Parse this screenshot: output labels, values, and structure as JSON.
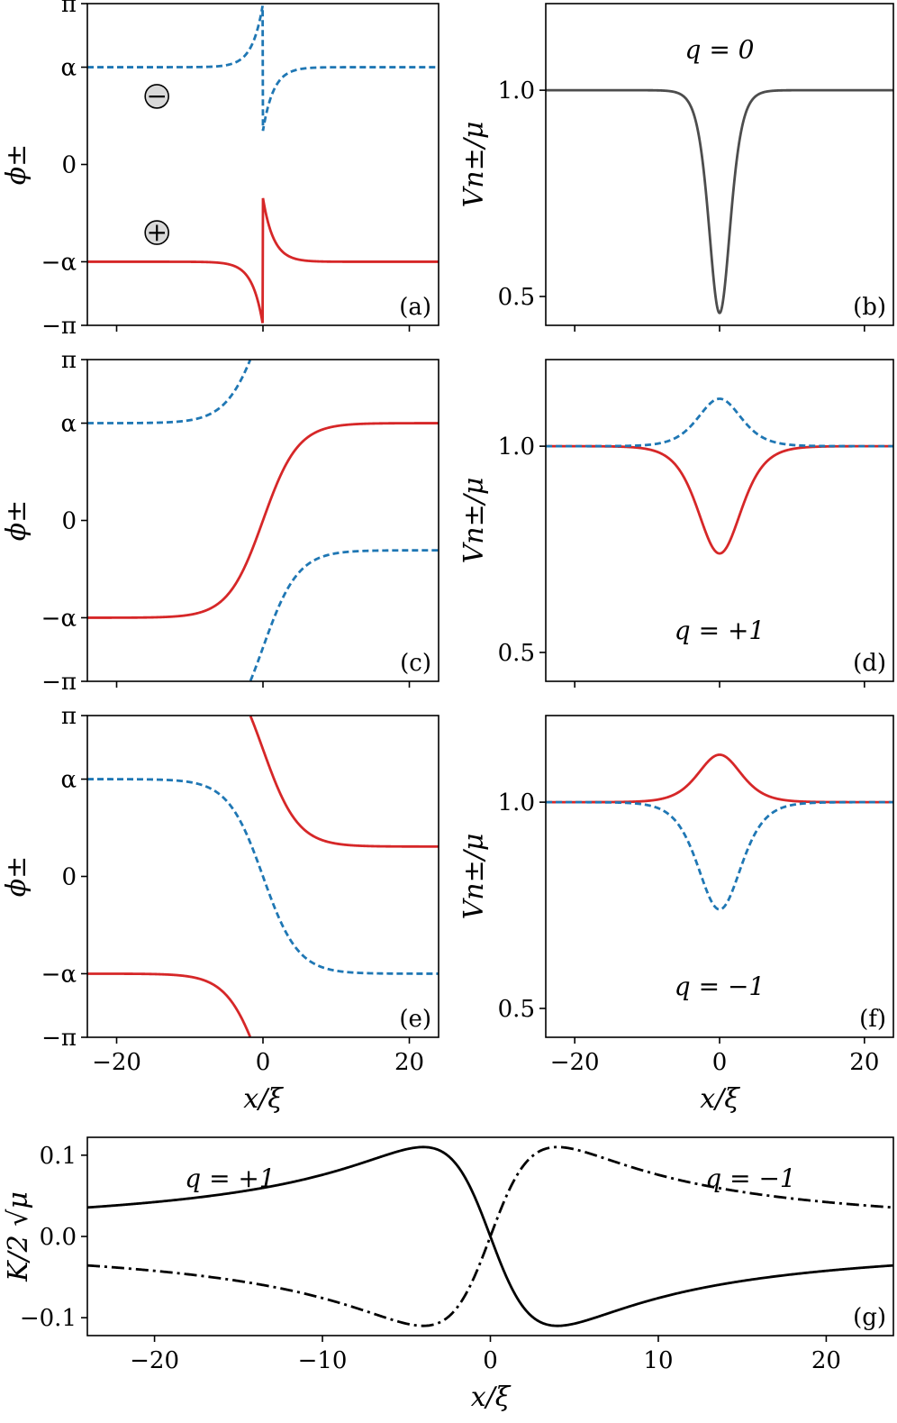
{
  "figure": {
    "x_label": "x/ξ",
    "left_ylabel": "ϕ±",
    "right_ylabel": "Vn±/μ",
    "g_ylabel": "K/2 √μ",
    "symbols": {
      "pi": "π",
      "alpha": "α",
      "minus": "−",
      "plus": "+"
    },
    "colors": {
      "red": "#d62728",
      "blue": "#1f77b4",
      "gray": "#4d4d4d",
      "black": "#000000"
    }
  },
  "chart_data": [
    {
      "id": "a",
      "type": "line",
      "panel_label": "(a)",
      "xlim": [
        -24,
        24
      ],
      "ylim": [
        -3.1416,
        3.1416
      ],
      "yticks": [
        {
          "value": -3.1416,
          "label": "−π"
        },
        {
          "value": -1.9,
          "label": "−α"
        },
        {
          "value": 0,
          "label": "0"
        },
        {
          "value": 1.9,
          "label": "α"
        },
        {
          "value": 3.1416,
          "label": "π"
        }
      ],
      "xticks": [
        -20,
        0,
        20
      ],
      "show_xticklabels": false,
      "phase": {
        "q": 0,
        "alpha": 1.9
      },
      "series": [
        {
          "component": "+",
          "style": "solid",
          "color": "#d62728"
        },
        {
          "component": "−",
          "style": "dashed",
          "color": "#1f77b4"
        }
      ],
      "markers": [
        {
          "symbol": "−",
          "x": -14.5,
          "y": 1.33
        },
        {
          "symbol": "+",
          "x": -14.5,
          "y": -1.33
        }
      ]
    },
    {
      "id": "b",
      "type": "line",
      "panel_label": "(b)",
      "annotation": "q = 0",
      "xlim": [
        -24,
        24
      ],
      "ylim": [
        0.43,
        1.21
      ],
      "yticks": [
        {
          "value": 0.5,
          "label": "0.5"
        },
        {
          "value": 1.0,
          "label": "1.0"
        }
      ],
      "xticks": [
        -20,
        0,
        20
      ],
      "show_xticklabels": false,
      "density": {
        "q": 0,
        "dip": 0.54,
        "width": 2.0
      },
      "series": [
        {
          "component": "±",
          "style": "solid",
          "color": "#4d4d4d"
        }
      ]
    },
    {
      "id": "c",
      "type": "line",
      "panel_label": "(c)",
      "xlim": [
        -24,
        24
      ],
      "ylim": [
        -3.1416,
        3.1416
      ],
      "yticks": [
        {
          "value": -3.1416,
          "label": "−π"
        },
        {
          "value": -1.9,
          "label": "−α"
        },
        {
          "value": 0,
          "label": "0"
        },
        {
          "value": 1.9,
          "label": "α"
        },
        {
          "value": 3.1416,
          "label": "π"
        }
      ],
      "xticks": [
        -20,
        0,
        20
      ],
      "show_xticklabels": false,
      "phase": {
        "q": 1,
        "alpha": 1.9
      },
      "series": [
        {
          "component": "+",
          "style": "solid",
          "color": "#d62728"
        },
        {
          "component": "−",
          "style": "dashed",
          "color": "#1f77b4"
        }
      ]
    },
    {
      "id": "d",
      "type": "line",
      "panel_label": "(d)",
      "annotation": "q = +1",
      "xlim": [
        -24,
        24
      ],
      "ylim": [
        0.43,
        1.21
      ],
      "yticks": [
        {
          "value": 0.5,
          "label": "0.5"
        },
        {
          "value": 1.0,
          "label": "1.0"
        }
      ],
      "xticks": [
        -20,
        0,
        20
      ],
      "show_xticklabels": false,
      "density": {
        "q": 1,
        "dip": 0.26,
        "bump": 0.115,
        "width": 4.0
      },
      "series": [
        {
          "component": "+",
          "style": "solid",
          "color": "#d62728",
          "shape": "dip"
        },
        {
          "component": "−",
          "style": "dashed",
          "color": "#1f77b4",
          "shape": "bump"
        }
      ]
    },
    {
      "id": "e",
      "type": "line",
      "panel_label": "(e)",
      "xlim": [
        -24,
        24
      ],
      "ylim": [
        -3.1416,
        3.1416
      ],
      "yticks": [
        {
          "value": -3.1416,
          "label": "−π"
        },
        {
          "value": -1.9,
          "label": "−α"
        },
        {
          "value": 0,
          "label": "0"
        },
        {
          "value": 1.9,
          "label": "α"
        },
        {
          "value": 3.1416,
          "label": "π"
        }
      ],
      "xticks": [
        -20,
        0,
        20
      ],
      "xticklabels": [
        "−20",
        "0",
        "20"
      ],
      "show_xticklabels": true,
      "phase": {
        "q": -1,
        "alpha": 1.9
      },
      "series": [
        {
          "component": "+",
          "style": "solid",
          "color": "#d62728"
        },
        {
          "component": "−",
          "style": "dashed",
          "color": "#1f77b4"
        }
      ]
    },
    {
      "id": "f",
      "type": "line",
      "panel_label": "(f)",
      "annotation": "q = −1",
      "xlim": [
        -24,
        24
      ],
      "ylim": [
        0.43,
        1.21
      ],
      "yticks": [
        {
          "value": 0.5,
          "label": "0.5"
        },
        {
          "value": 1.0,
          "label": "1.0"
        }
      ],
      "xticks": [
        -20,
        0,
        20
      ],
      "xticklabels": [
        "−20",
        "0",
        "20"
      ],
      "show_xticklabels": true,
      "density": {
        "q": -1,
        "dip": 0.26,
        "bump": 0.115,
        "width": 4.0
      },
      "series": [
        {
          "component": "+",
          "style": "solid",
          "color": "#d62728",
          "shape": "bump"
        },
        {
          "component": "−",
          "style": "dashed",
          "color": "#1f77b4",
          "shape": "dip"
        }
      ]
    },
    {
      "id": "g",
      "type": "line",
      "panel_label": "(g)",
      "xlim": [
        -24,
        24
      ],
      "ylim": [
        -0.122,
        0.122
      ],
      "yticks": [
        {
          "value": -0.1,
          "label": "−0.1"
        },
        {
          "value": 0.0,
          "label": "0.0"
        },
        {
          "value": 0.1,
          "label": "0.1"
        }
      ],
      "xticks": [
        -20,
        -10,
        0,
        10,
        20
      ],
      "xticklabels": [
        "−20",
        "−10",
        "0",
        "10",
        "20"
      ],
      "show_xticklabels": true,
      "current": {
        "peak": 0.11,
        "peak_x": 4.0
      },
      "series": [
        {
          "name": "q = +1",
          "q": 1,
          "style": "solid",
          "color": "#000000"
        },
        {
          "name": "q = −1",
          "q": -1,
          "style": "dashdot",
          "color": "#000000"
        }
      ]
    }
  ]
}
